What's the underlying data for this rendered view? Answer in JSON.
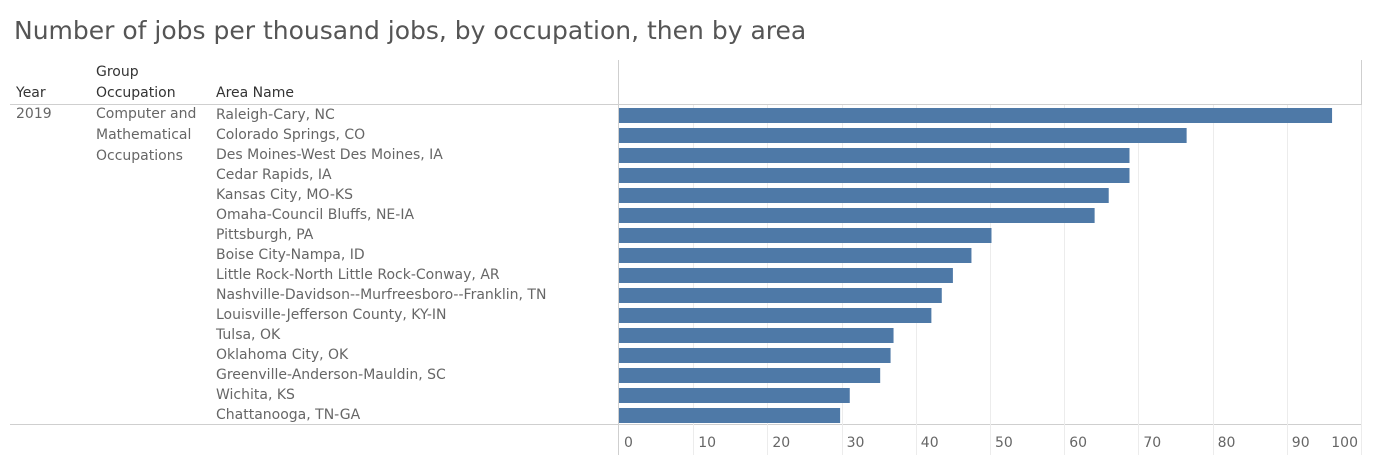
{
  "title": "Number of jobs per thousand jobs, by occupation, then by area",
  "headers": {
    "year": "Year",
    "group": "Group",
    "occupation": "Occupation",
    "area": "Area Name"
  },
  "year": "2019",
  "occupation_lines": [
    "Computer and",
    "Mathematical",
    "Occupations"
  ],
  "chart_data": {
    "type": "bar",
    "orientation": "horizontal",
    "bar_color": "#4e79a7",
    "xlim": [
      0,
      100
    ],
    "xticks": [
      0,
      10,
      20,
      30,
      40,
      50,
      60,
      70,
      80,
      90,
      100
    ],
    "grid": true,
    "categories": [
      "Raleigh-Cary, NC",
      "Colorado Springs, CO",
      "Des Moines-West Des Moines, IA",
      "Cedar Rapids, IA",
      "Kansas City, MO-KS",
      "Omaha-Council Bluffs, NE-IA",
      "Pittsburgh, PA",
      "Boise City-Nampa, ID",
      "Little Rock-North Little Rock-Conway, AR",
      "Nashville-Davidson--Murfreesboro--Franklin, TN",
      "Louisville-Jefferson County, KY-IN",
      "Tulsa, OK",
      "Oklahoma City, OK",
      "Greenville-Anderson-Mauldin, SC",
      "Wichita, KS",
      "Chattanooga, TN-GA"
    ],
    "values": [
      96.1,
      76.5,
      68.8,
      68.8,
      66.0,
      64.1,
      50.2,
      47.5,
      45.0,
      43.5,
      42.1,
      37.0,
      36.6,
      35.2,
      31.1,
      29.8
    ]
  }
}
